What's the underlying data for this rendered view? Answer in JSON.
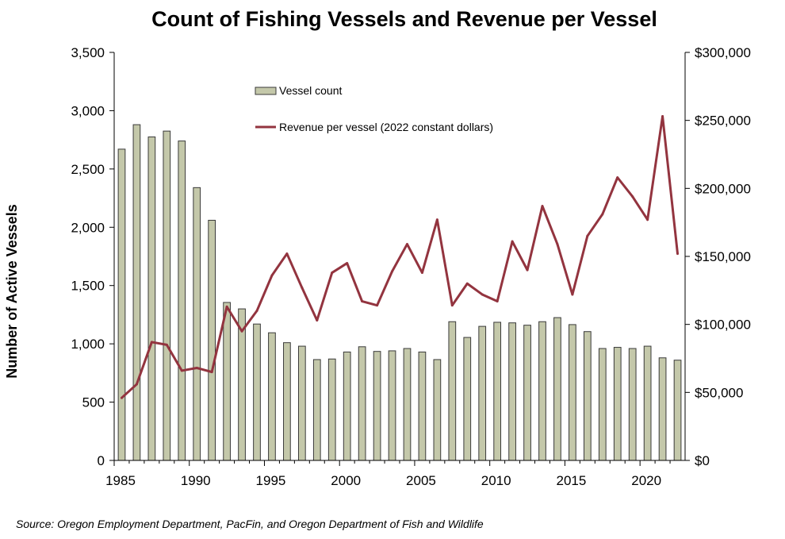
{
  "chart_data": {
    "type": "bar+line",
    "title": "Count of Fishing Vessels and Revenue per Vessel",
    "ylabel": "Number of Active Vessels",
    "y2label": "",
    "xlabel": "",
    "x": [
      1985,
      1986,
      1987,
      1988,
      1989,
      1990,
      1991,
      1992,
      1993,
      1994,
      1995,
      1996,
      1997,
      1998,
      1999,
      2000,
      2001,
      2002,
      2003,
      2004,
      2005,
      2006,
      2007,
      2008,
      2009,
      2010,
      2011,
      2012,
      2013,
      2014,
      2015,
      2016,
      2017,
      2018,
      2019,
      2020,
      2021,
      2022
    ],
    "x_ticks": [
      "1985",
      "1990",
      "1995",
      "2000",
      "2005",
      "2010",
      "2015",
      "2020"
    ],
    "x_tick_values": [
      1985,
      1990,
      1995,
      2000,
      2005,
      2010,
      2015,
      2020
    ],
    "ylim": [
      0,
      3500
    ],
    "y_ticks": [
      "0",
      "500",
      "1,000",
      "1,500",
      "2,000",
      "2,500",
      "3,000",
      "3,500"
    ],
    "y_tick_values": [
      0,
      500,
      1000,
      1500,
      2000,
      2500,
      3000,
      3500
    ],
    "y2lim": [
      0,
      300000
    ],
    "y2_ticks": [
      "$0",
      "$50,000",
      "$100,000",
      "$150,000",
      "$200,000",
      "$250,000",
      "$300,000"
    ],
    "y2_tick_values": [
      0,
      50000,
      100000,
      150000,
      200000,
      250000,
      300000
    ],
    "series": [
      {
        "name": "Vessel count",
        "type": "bar",
        "axis": "left",
        "color": "#c4c8aa",
        "edge": "#3a3a3a",
        "values": [
          2670,
          2880,
          2775,
          2825,
          2740,
          2340,
          2060,
          1355,
          1300,
          1170,
          1095,
          1010,
          980,
          865,
          870,
          930,
          975,
          935,
          940,
          960,
          930,
          865,
          1190,
          1055,
          1150,
          1185,
          1180,
          1160,
          1190,
          1225,
          1165,
          1105,
          960,
          970,
          960,
          980,
          880,
          860
        ]
      },
      {
        "name": "Revenue per vessel (2022 constant dollars)",
        "type": "line",
        "axis": "right",
        "color": "#93343f",
        "values": [
          46000,
          56000,
          87000,
          85000,
          66000,
          68000,
          65000,
          113000,
          95000,
          110000,
          136000,
          152000,
          127000,
          103000,
          138000,
          145000,
          117000,
          114000,
          139000,
          159000,
          138000,
          177000,
          114000,
          130000,
          122000,
          117000,
          161000,
          140000,
          187000,
          159000,
          122000,
          165000,
          181000,
          208000,
          194000,
          177000,
          253000,
          152000
        ]
      }
    ],
    "legend": "top-center",
    "grid": false
  },
  "source_note": "Source: Oregon Employment Department, PacFin, and Oregon Department of Fish and Wildlife"
}
